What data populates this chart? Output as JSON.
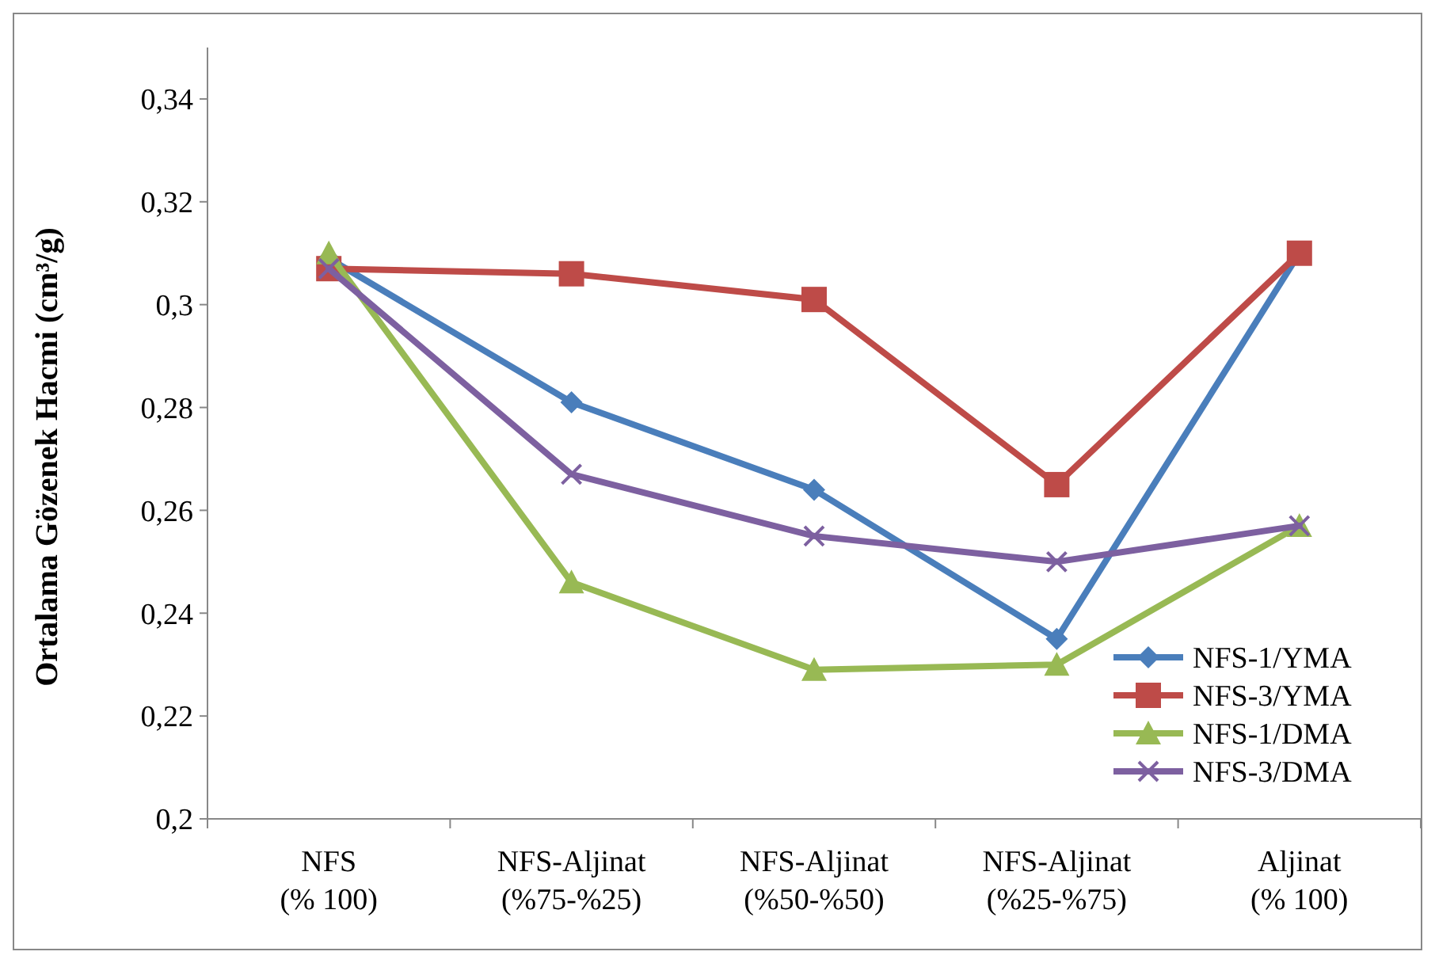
{
  "chart_data": {
    "type": "line",
    "ylabel": "Ortalama Gözenek Hacmi (cm³/g)",
    "categories": [
      "NFS\n(% 100)",
      "NFS-Aljinat\n(%75-%25)",
      "NFS-Aljinat\n(%50-%50)",
      "NFS-Aljinat\n(%25-%75)",
      "Aljinat\n(% 100)"
    ],
    "ylim": [
      0.2,
      0.35
    ],
    "yticks": [
      {
        "value": 0.2,
        "label": "0,2"
      },
      {
        "value": 0.22,
        "label": "0,22"
      },
      {
        "value": 0.24,
        "label": "0,24"
      },
      {
        "value": 0.26,
        "label": "0,26"
      },
      {
        "value": 0.28,
        "label": "0,28"
      },
      {
        "value": 0.3,
        "label": "0,3"
      },
      {
        "value": 0.32,
        "label": "0,32"
      },
      {
        "value": 0.34,
        "label": "0,34"
      }
    ],
    "grid": false,
    "legend": "bottom right",
    "series": [
      {
        "name": "NFS-1/YMA",
        "color": "#4a7ebb",
        "marker": "diamond",
        "values": [
          0.309,
          0.281,
          0.264,
          0.235,
          0.31
        ]
      },
      {
        "name": "NFS-3/YMA",
        "color": "#be4b48",
        "marker": "square",
        "values": [
          0.307,
          0.306,
          0.301,
          0.265,
          0.31
        ]
      },
      {
        "name": "NFS-1/DMA",
        "color": "#98b954",
        "marker": "triangle",
        "values": [
          0.31,
          0.246,
          0.229,
          0.23,
          0.257
        ]
      },
      {
        "name": "NFS-3/DMA",
        "color": "#7d60a0",
        "marker": "cross",
        "values": [
          0.307,
          0.267,
          0.255,
          0.25,
          0.257
        ]
      }
    ]
  }
}
